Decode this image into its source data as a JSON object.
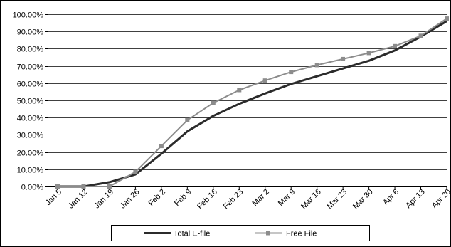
{
  "chart_data": {
    "type": "line",
    "title": "",
    "xlabel": "",
    "ylabel": "",
    "categories": [
      "Jan 5",
      "Jan 12",
      "Jan 19",
      "Jan 26",
      "Feb 2",
      "Feb 9",
      "Feb 16",
      "Feb 23",
      "Mar 2",
      "Mar 9",
      "Mar 16",
      "Mar 23",
      "Mar 30",
      "Apr 6",
      "Apr 13",
      "Apr 20"
    ],
    "yticks": [
      "0.00%",
      "10.00%",
      "20.00%",
      "30.00%",
      "40.00%",
      "50.00%",
      "60.00%",
      "70.00%",
      "80.00%",
      "90.00%",
      "100.00%"
    ],
    "ylim": [
      0,
      100
    ],
    "grid": true,
    "legend_position": "bottom",
    "series": [
      {
        "name": "Total E-file",
        "color": "#2b2b2b",
        "marker": "none",
        "values": [
          0,
          0,
          2.5,
          7,
          19,
          32,
          41,
          48,
          54,
          59.5,
          64,
          68.5,
          73,
          79,
          87,
          96
        ]
      },
      {
        "name": "Free File",
        "color": "#8c8c8c",
        "marker": "square",
        "values": [
          0,
          0,
          0,
          8.5,
          23.5,
          38.5,
          48.5,
          56,
          61.5,
          66.5,
          70.5,
          74,
          77.5,
          81.5,
          87.5,
          97.5
        ]
      }
    ]
  }
}
